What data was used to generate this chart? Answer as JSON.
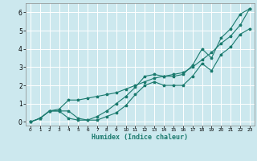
{
  "xlabel": "Humidex (Indice chaleur)",
  "background_color": "#cce8ee",
  "grid_color": "#ffffff",
  "line_color": "#1a7a6e",
  "xlim": [
    -0.5,
    23.5
  ],
  "ylim": [
    -0.2,
    6.5
  ],
  "xticks": [
    0,
    1,
    2,
    3,
    4,
    5,
    6,
    7,
    8,
    9,
    10,
    11,
    12,
    13,
    14,
    15,
    16,
    17,
    18,
    19,
    20,
    21,
    22,
    23
  ],
  "yticks": [
    0,
    1,
    2,
    3,
    4,
    5,
    6
  ],
  "x": [
    0,
    1,
    2,
    3,
    4,
    5,
    6,
    7,
    8,
    9,
    10,
    11,
    12,
    13,
    14,
    15,
    16,
    17,
    18,
    19,
    20,
    21,
    22,
    23
  ],
  "line1": [
    0.0,
    0.2,
    0.6,
    0.6,
    0.6,
    0.2,
    0.1,
    0.3,
    0.6,
    1.0,
    1.4,
    1.9,
    2.5,
    2.6,
    2.5,
    2.5,
    2.6,
    3.1,
    4.0,
    3.5,
    4.6,
    5.1,
    5.9,
    6.2
  ],
  "line2": [
    0.0,
    0.2,
    0.6,
    0.6,
    0.2,
    0.1,
    0.1,
    0.1,
    0.3,
    0.5,
    0.9,
    1.5,
    2.0,
    2.2,
    2.0,
    2.0,
    2.0,
    2.5,
    3.2,
    2.8,
    3.7,
    4.1,
    4.8,
    5.1
  ],
  "line3": [
    0.0,
    0.2,
    0.6,
    0.7,
    1.2,
    1.2,
    1.3,
    1.4,
    1.5,
    1.6,
    1.8,
    2.0,
    2.2,
    2.4,
    2.5,
    2.6,
    2.7,
    3.0,
    3.4,
    3.8,
    4.3,
    4.7,
    5.3,
    6.2
  ]
}
